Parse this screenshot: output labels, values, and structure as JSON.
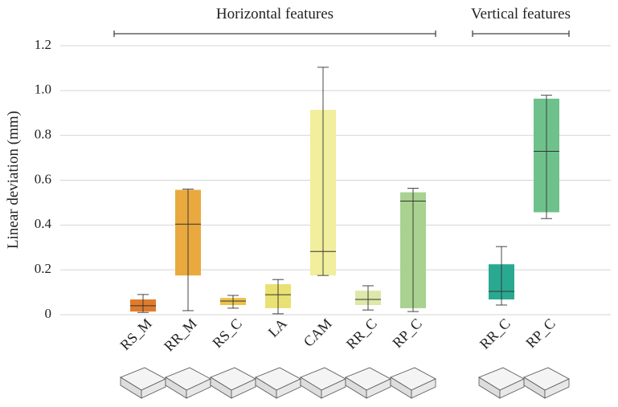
{
  "chart_data": {
    "type": "box",
    "ylabel": "Linear deviation (mm)",
    "ylim": [
      0,
      1.2
    ],
    "yticks": [
      0,
      0.2,
      0.4,
      0.6,
      0.8,
      {
        "value": 1,
        "label": "1.0"
      },
      1.2
    ],
    "grid": true,
    "groups": [
      {
        "label": "Horizontal features",
        "categories": [
          "RS_M",
          "RR_M",
          "RS_C",
          "LA",
          "CAM",
          "RR_C",
          "RP_C"
        ],
        "boxes": [
          {
            "color": "#e07b2b",
            "whisker_low": 0.01,
            "q1": 0.014,
            "median": 0.04,
            "q3": 0.068,
            "whisker_high": 0.09
          },
          {
            "color": "#e9a93f",
            "whisker_low": 0.018,
            "q1": 0.175,
            "median": 0.404,
            "q3": 0.557,
            "whisker_high": 0.56
          },
          {
            "color": "#ecc24c",
            "whisker_low": 0.029,
            "q1": 0.043,
            "median": 0.061,
            "q3": 0.075,
            "whisker_high": 0.086
          },
          {
            "color": "#e9e173",
            "whisker_low": 0.004,
            "q1": 0.029,
            "median": 0.089,
            "q3": 0.136,
            "whisker_high": 0.157
          },
          {
            "color": "#f1ee9d",
            "whisker_low": 0.175,
            "q1": 0.175,
            "median": 0.282,
            "q3": 0.914,
            "whisker_high": 1.104
          },
          {
            "color": "#dde8a9",
            "whisker_low": 0.021,
            "q1": 0.043,
            "median": 0.068,
            "q3": 0.107,
            "whisker_high": 0.129
          },
          {
            "color": "#a9d190",
            "whisker_low": 0.014,
            "q1": 0.029,
            "median": 0.507,
            "q3": 0.546,
            "whisker_high": 0.564
          }
        ]
      },
      {
        "label": "Vertical features",
        "categories": [
          "RR_C",
          "RP_C"
        ],
        "boxes": [
          {
            "color": "#2aa991",
            "whisker_low": 0.043,
            "q1": 0.068,
            "median": 0.104,
            "q3": 0.225,
            "whisker_high": 0.304
          },
          {
            "color": "#6fc18b",
            "whisker_low": 0.429,
            "q1": 0.457,
            "median": 0.729,
            "q3": 0.964,
            "whisker_high": 0.979
          }
        ]
      }
    ]
  }
}
